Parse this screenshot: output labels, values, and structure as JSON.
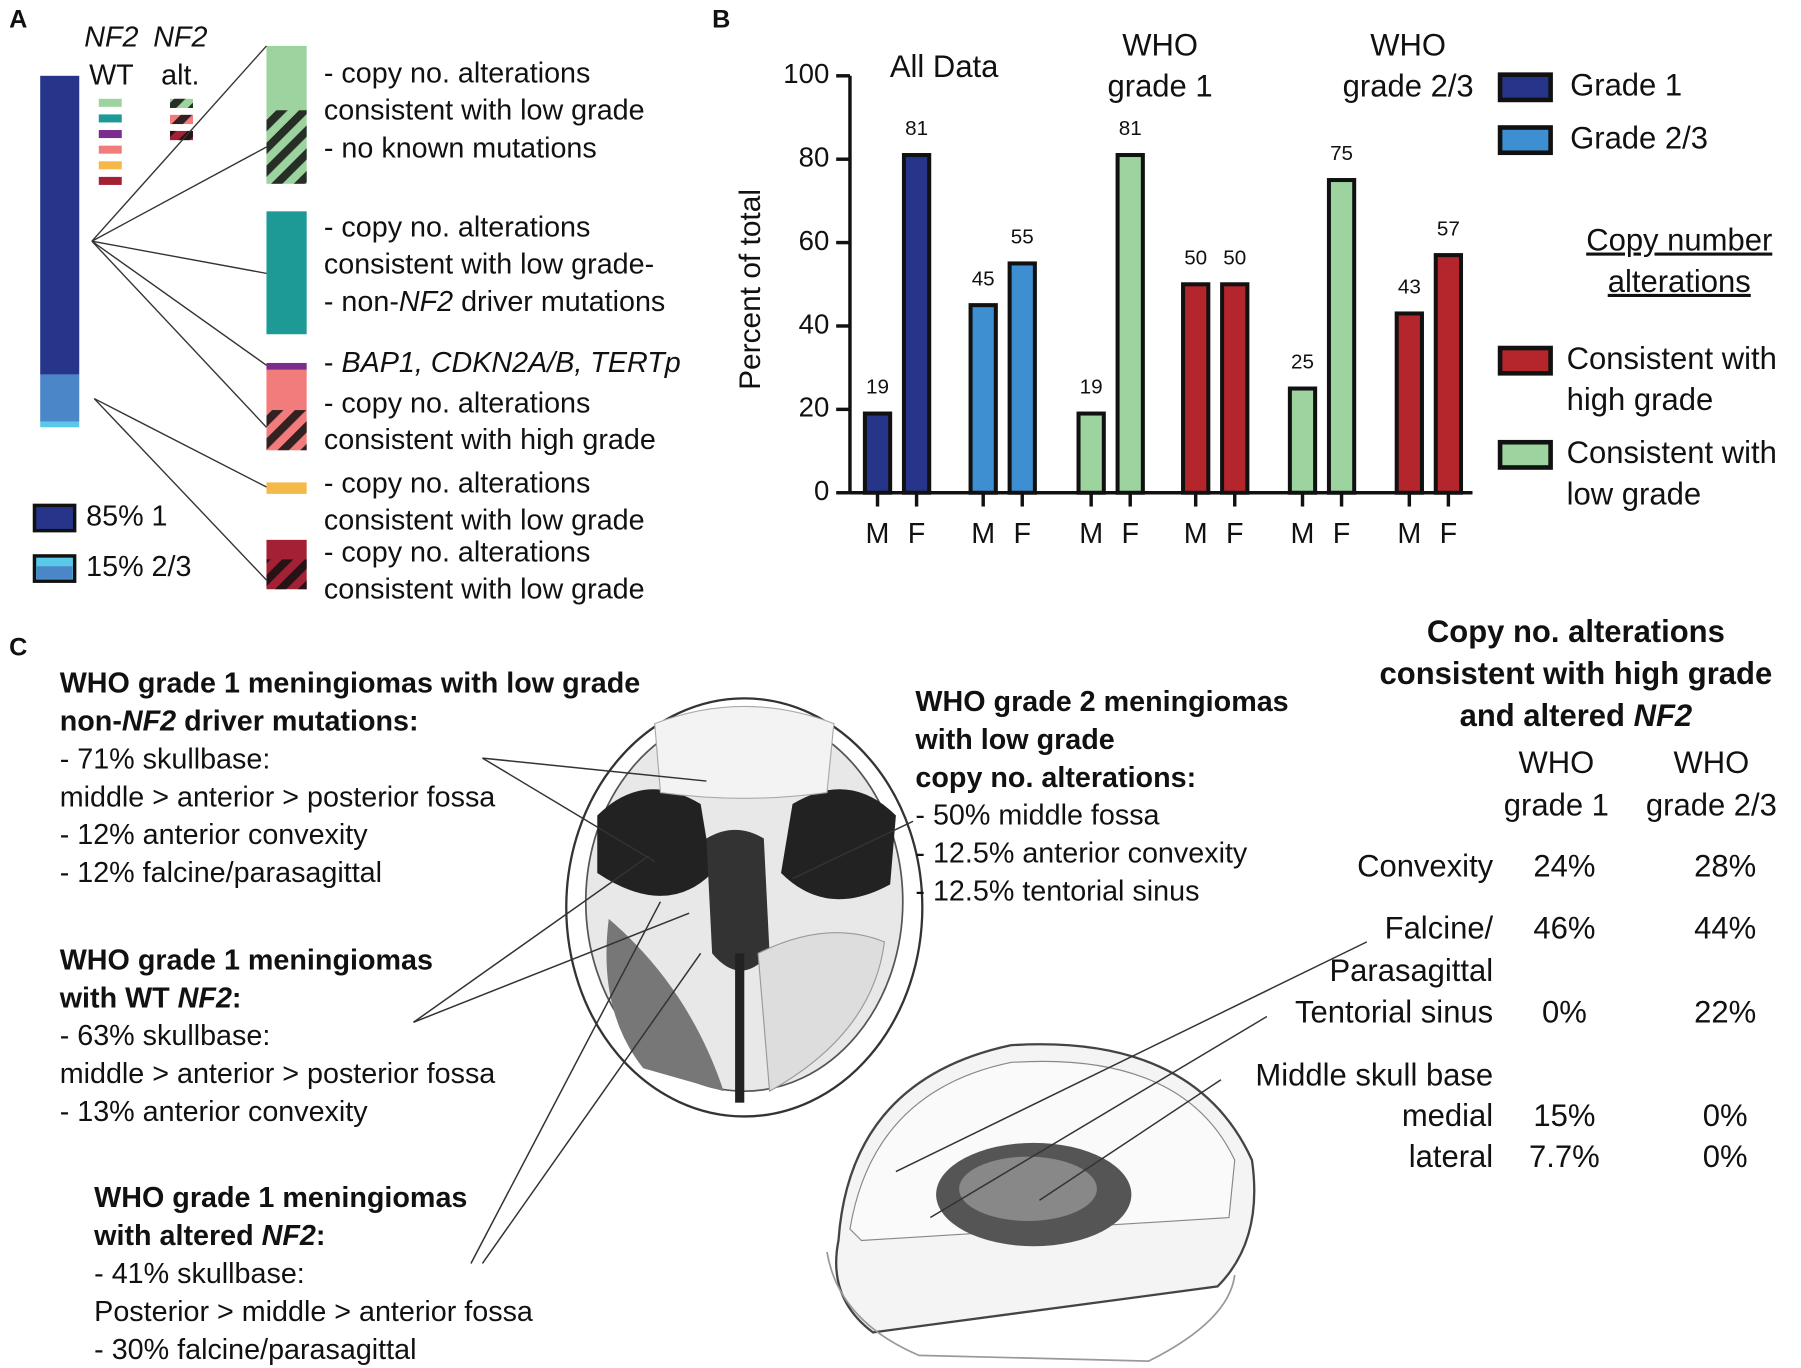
{
  "panel_labels": [
    "A",
    "B",
    "C"
  ],
  "panel_a": {
    "column_headers": [
      [
        "NF2",
        "WT"
      ],
      [
        "NF2",
        "alt."
      ]
    ],
    "descriptions": [
      [
        "- copy no. alterations"
      ],
      [
        "consistent with low grade"
      ],
      [
        "- no known mutations"
      ],
      [
        "- copy no. alterations"
      ],
      [
        "consistent with low grade-"
      ],
      [
        "- non-",
        "NF2",
        " driver mutations"
      ],
      [
        "- ",
        "BAP1, CDKN2A/B, TERTp"
      ],
      [
        "- copy no. alterations"
      ],
      [
        "consistent with high grade"
      ],
      [
        "- copy no. alterations"
      ],
      [
        "consistent with low grade"
      ],
      [
        "- copy no. alterations"
      ],
      [
        "consistent with low grade"
      ]
    ],
    "legend": [
      "85% 1",
      "15% 2/3"
    ]
  },
  "chart_data": {
    "type": "bar",
    "ylabel": "Percent of total",
    "categories": [
      "M",
      "F",
      "M",
      "F",
      "M",
      "F",
      "M",
      "F",
      "M",
      "F",
      "M",
      "F"
    ],
    "values": [
      19,
      81,
      45,
      55,
      19,
      81,
      50,
      50,
      25,
      75,
      43,
      57
    ],
    "colors": [
      "#26348a",
      "#26348a",
      "#3d8fd1",
      "#3d8fd1",
      "#9dd39f",
      "#9dd39f",
      "#b4252c",
      "#b4252c",
      "#9dd39f",
      "#9dd39f",
      "#b4252c",
      "#b4252c"
    ],
    "groups": [
      [
        "All Data"
      ],
      [
        "WHO",
        "grade 1"
      ],
      [
        "WHO",
        "grade 2/3"
      ]
    ],
    "ylim": [
      0,
      100
    ],
    "yticks": [
      0,
      20,
      40,
      60,
      80,
      100
    ],
    "legend": [
      {
        "name": "Grade 1",
        "color": "#26348a"
      },
      {
        "name": "Grade 2/3",
        "color": "#3d8fd1"
      }
    ],
    "legend2_title": [
      "Copy number",
      "alterations"
    ],
    "legend2": [
      {
        "name": [
          "Consistent with",
          "high grade"
        ],
        "color": "#b4252c"
      },
      {
        "name": [
          "Consistent with",
          "low grade"
        ],
        "color": "#9dd39f"
      }
    ]
  },
  "panel_c": {
    "blocks": [
      {
        "heading": [
          [
            "WHO grade 1 meningiomas with low grade"
          ],
          [
            "non-",
            "NF2",
            " driver mutations:"
          ]
        ],
        "items": [
          [
            "- 71% skullbase:"
          ],
          [
            "middle > anterior > posterior fossa"
          ],
          [
            "- 12% anterior convexity"
          ],
          [
            "- 12% falcine/parasagittal"
          ]
        ]
      },
      {
        "heading": [
          [
            "WHO grade 1 meningiomas"
          ],
          [
            "with WT ",
            "NF2",
            ":"
          ]
        ],
        "items": [
          [
            "- 63% skullbase:"
          ],
          [
            "middle > anterior > posterior fossa"
          ],
          [
            "- 13% anterior convexity"
          ]
        ]
      },
      {
        "heading": [
          [
            "WHO grade 1 meningiomas"
          ],
          [
            "with altered ",
            "NF2",
            ":"
          ]
        ],
        "items": [
          [
            "- 41% skullbase:"
          ],
          [
            "Posterior > middle > anterior fossa"
          ],
          [
            "- 30% falcine/parasagittal"
          ]
        ]
      },
      {
        "heading": [
          [
            "WHO grade 2 meningiomas"
          ],
          [
            "with low grade"
          ],
          [
            "copy no. alterations:"
          ]
        ],
        "items": [
          [
            "- 50% middle fossa"
          ],
          [
            "- 12.5% anterior convexity"
          ],
          [
            "- 12.5% tentorial sinus"
          ]
        ]
      }
    ],
    "table": {
      "title": [
        [
          "Copy no. alterations"
        ],
        [
          "consistent with high grade"
        ],
        [
          "and altered ",
          "NF2"
        ]
      ],
      "columns": [
        [
          "WHO",
          "grade 1"
        ],
        [
          "WHO",
          "grade 2/3"
        ]
      ],
      "rows": [
        {
          "label": [
            "Convexity"
          ],
          "cells": [
            "24%",
            "28%"
          ]
        },
        {
          "label": [
            "Falcine/",
            "Parasagittal"
          ],
          "cells": [
            "46%",
            "44%"
          ]
        },
        {
          "label": [
            "Tentorial sinus"
          ],
          "cells": [
            "0%",
            "22%"
          ]
        },
        {
          "label": [
            "Middle skull base"
          ]
        },
        {
          "label": [
            "medial"
          ],
          "cells": [
            "15%",
            "0%"
          ]
        },
        {
          "label": [
            "lateral"
          ],
          "cells": [
            "7.7%",
            "0%"
          ]
        }
      ]
    }
  }
}
